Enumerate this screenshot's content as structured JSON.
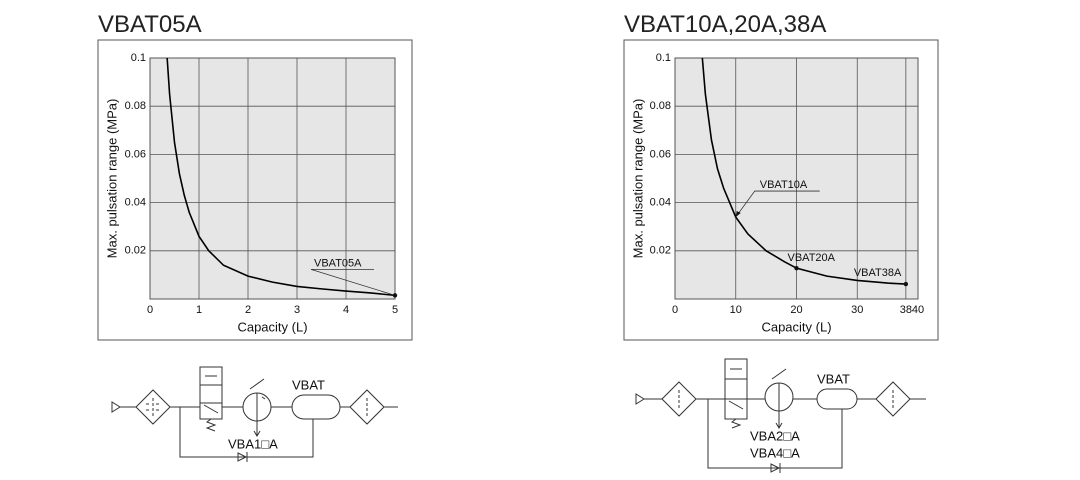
{
  "chart_data": [
    {
      "type": "line",
      "title": "VBAT05A",
      "xlabel": "Capacity (L)",
      "ylabel": "Max. pulsation range (MPa)",
      "x": [
        0.35,
        0.4,
        0.5,
        0.6,
        0.7,
        0.8,
        1,
        1.2,
        1.5,
        2,
        2.5,
        3,
        3.5,
        4,
        4.5,
        5
      ],
      "values": [
        0.1,
        0.085,
        0.065,
        0.052,
        0.043,
        0.036,
        0.026,
        0.02,
        0.014,
        0.0095,
        0.007,
        0.0052,
        0.0042,
        0.0033,
        0.0025,
        0.0015
      ],
      "color": "#000000",
      "xlim": [
        0,
        5
      ],
      "xticks": [
        0,
        1,
        2,
        3,
        4,
        5
      ],
      "ylim": [
        0,
        0.1
      ],
      "yticks": [
        0.02,
        0.04,
        0.06,
        0.08,
        0.1
      ],
      "grid": true,
      "annotations": [
        {
          "text": "VBAT05A",
          "x": 5,
          "y": 0.0015
        }
      ]
    },
    {
      "type": "line",
      "title": "VBAT10A,20A,38A",
      "xlabel": "Capacity (L)",
      "ylabel": "Max. pulsation range (MPa)",
      "x": [
        4.5,
        5,
        6,
        7,
        8,
        10,
        12,
        15,
        18,
        20,
        25,
        30,
        35,
        38
      ],
      "values": [
        0.1,
        0.085,
        0.066,
        0.054,
        0.046,
        0.034,
        0.027,
        0.02,
        0.0155,
        0.0128,
        0.0095,
        0.0077,
        0.0066,
        0.0062
      ],
      "color": "#000000",
      "xlim": [
        0,
        40
      ],
      "xticks": [
        0,
        10,
        20,
        30,
        38,
        40
      ],
      "ylim": [
        0,
        0.1
      ],
      "yticks": [
        0.02,
        0.04,
        0.06,
        0.08,
        0.1
      ],
      "grid": true,
      "annotations": [
        {
          "text": "VBAT10A",
          "x": 10,
          "y": 0.034
        },
        {
          "text": "VBAT20A",
          "x": 20,
          "y": 0.0128
        },
        {
          "text": "VBAT38A",
          "x": 38,
          "y": 0.0062
        }
      ]
    }
  ],
  "circuits": [
    {
      "tank_label": "VBAT",
      "model_labels": [
        "VBA1□A"
      ]
    },
    {
      "tank_label": "VBAT",
      "model_labels": [
        "VBA2□A",
        "VBA4□A"
      ]
    }
  ]
}
